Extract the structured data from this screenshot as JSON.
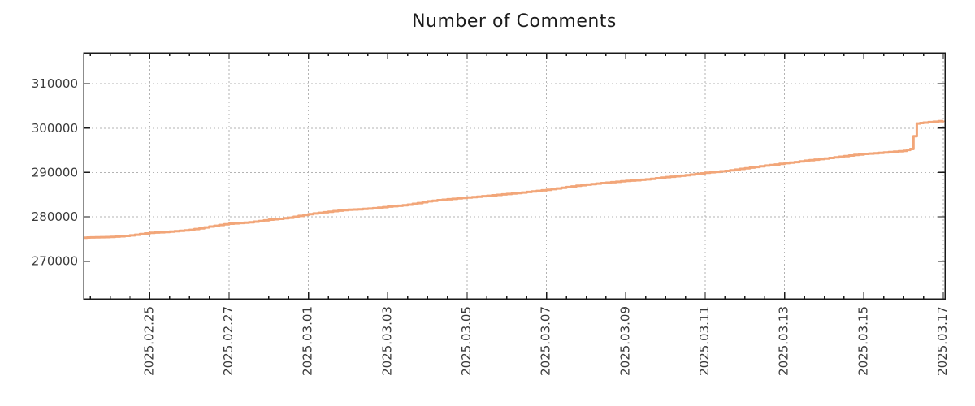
{
  "chart_data": {
    "type": "line",
    "title": "Number of Comments",
    "xlabel": "",
    "ylabel": "",
    "legend": "none",
    "grid": {
      "style": "dotted",
      "color": "#b3b3b3",
      "on_major_ticks_both_axes": true
    },
    "axes": {
      "x": {
        "type": "datetime",
        "min": "2025-02-23T08",
        "max": "2025-03-17T01",
        "major_ticks": [
          "2025.02.25",
          "2025.02.27",
          "2025.03.01",
          "2025.03.03",
          "2025.03.05",
          "2025.03.07",
          "2025.03.09",
          "2025.03.11",
          "2025.03.13",
          "2025.03.15",
          "2025.03.17"
        ],
        "minor_tick_hours": 12,
        "label_rotation_deg": -90,
        "ticks_mirrored_top": true
      },
      "y": {
        "min": 261500,
        "max": 317000,
        "ticks": [
          270000,
          280000,
          290000,
          300000,
          310000
        ],
        "ticks_mirrored_right": true
      }
    },
    "series": [
      {
        "name": "comments",
        "color": "#f2a679",
        "line_width": 3,
        "step": true,
        "points": [
          [
            "2025-02-23T08",
            275300
          ],
          [
            "2025-02-23T12",
            275350
          ],
          [
            "2025-02-23T18",
            275400
          ],
          [
            "2025-02-24T00",
            275450
          ],
          [
            "2025-02-24T06",
            275600
          ],
          [
            "2025-02-24T12",
            275800
          ],
          [
            "2025-02-24T18",
            276100
          ],
          [
            "2025-02-25T00",
            276400
          ],
          [
            "2025-02-25T06",
            276500
          ],
          [
            "2025-02-25T12",
            276650
          ],
          [
            "2025-02-25T18",
            276850
          ],
          [
            "2025-02-26T00",
            277050
          ],
          [
            "2025-02-26T06",
            277400
          ],
          [
            "2025-02-26T12",
            277800
          ],
          [
            "2025-02-26T18",
            278150
          ],
          [
            "2025-02-27T00",
            278450
          ],
          [
            "2025-02-27T06",
            278600
          ],
          [
            "2025-02-27T12",
            278750
          ],
          [
            "2025-02-27T18",
            279050
          ],
          [
            "2025-02-28T00",
            279350
          ],
          [
            "2025-02-28T06",
            279550
          ],
          [
            "2025-02-28T12",
            279800
          ],
          [
            "2025-02-28T18",
            280200
          ],
          [
            "2025-03-01T00",
            280600
          ],
          [
            "2025-03-01T06",
            280900
          ],
          [
            "2025-03-01T12",
            281150
          ],
          [
            "2025-03-01T18",
            281400
          ],
          [
            "2025-03-02T00",
            281600
          ],
          [
            "2025-03-02T06",
            281700
          ],
          [
            "2025-03-02T12",
            281850
          ],
          [
            "2025-03-02T18",
            282050
          ],
          [
            "2025-03-03T00",
            282300
          ],
          [
            "2025-03-03T06",
            282500
          ],
          [
            "2025-03-03T12",
            282750
          ],
          [
            "2025-03-03T18",
            283100
          ],
          [
            "2025-03-04T00",
            283500
          ],
          [
            "2025-03-04T06",
            283750
          ],
          [
            "2025-03-04T12",
            283950
          ],
          [
            "2025-03-04T18",
            284150
          ],
          [
            "2025-03-05T00",
            284350
          ],
          [
            "2025-03-05T06",
            284550
          ],
          [
            "2025-03-05T12",
            284750
          ],
          [
            "2025-03-05T18",
            284950
          ],
          [
            "2025-03-06T00",
            285150
          ],
          [
            "2025-03-06T06",
            285350
          ],
          [
            "2025-03-06T12",
            285600
          ],
          [
            "2025-03-06T18",
            285850
          ],
          [
            "2025-03-07T00",
            286100
          ],
          [
            "2025-03-07T06",
            286400
          ],
          [
            "2025-03-07T12",
            286700
          ],
          [
            "2025-03-07T18",
            287000
          ],
          [
            "2025-03-08T00",
            287250
          ],
          [
            "2025-03-08T06",
            287500
          ],
          [
            "2025-03-08T12",
            287700
          ],
          [
            "2025-03-08T18",
            287900
          ],
          [
            "2025-03-09T00",
            288100
          ],
          [
            "2025-03-09T06",
            288250
          ],
          [
            "2025-03-09T12",
            288450
          ],
          [
            "2025-03-09T18",
            288700
          ],
          [
            "2025-03-10T00",
            288950
          ],
          [
            "2025-03-10T06",
            289150
          ],
          [
            "2025-03-10T12",
            289400
          ],
          [
            "2025-03-10T18",
            289650
          ],
          [
            "2025-03-11T00",
            289950
          ],
          [
            "2025-03-11T06",
            290150
          ],
          [
            "2025-03-11T12",
            290350
          ],
          [
            "2025-03-11T18",
            290650
          ],
          [
            "2025-03-12T00",
            290950
          ],
          [
            "2025-03-12T06",
            291250
          ],
          [
            "2025-03-12T12",
            291550
          ],
          [
            "2025-03-12T18",
            291800
          ],
          [
            "2025-03-13T00",
            292100
          ],
          [
            "2025-03-13T06",
            292350
          ],
          [
            "2025-03-13T12",
            292650
          ],
          [
            "2025-03-13T18",
            292900
          ],
          [
            "2025-03-14T00",
            293150
          ],
          [
            "2025-03-14T06",
            293400
          ],
          [
            "2025-03-14T12",
            293700
          ],
          [
            "2025-03-14T18",
            293950
          ],
          [
            "2025-03-15T00",
            294200
          ],
          [
            "2025-03-15T06",
            294350
          ],
          [
            "2025-03-15T12",
            294500
          ],
          [
            "2025-03-15T18",
            294700
          ],
          [
            "2025-03-16T00",
            294900
          ],
          [
            "2025-03-16T04",
            295300
          ],
          [
            "2025-03-16T08",
            301050
          ],
          [
            "2025-03-16T12",
            301250
          ],
          [
            "2025-03-16T18",
            301450
          ],
          [
            "2025-03-17T00",
            301700
          ]
        ]
      }
    ]
  },
  "colors": {
    "line": "#f2a679",
    "grid": "#b3b3b3",
    "axis": "#1a1a1a",
    "tick_label": "#3a3a3a",
    "title": "#1c1c1c",
    "background": "#ffffff"
  }
}
